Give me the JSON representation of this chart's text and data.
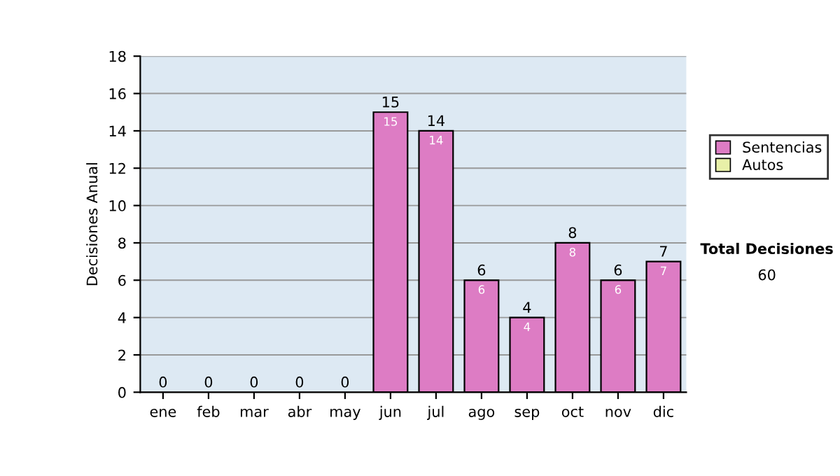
{
  "chart_data": {
    "type": "bar",
    "ylabel": "Decisiones Anual",
    "categories": [
      "ene",
      "feb",
      "mar",
      "abr",
      "may",
      "jun",
      "jul",
      "ago",
      "sep",
      "oct",
      "nov",
      "dic"
    ],
    "series": [
      {
        "name": "Sentencias",
        "color": "#dd7cc4",
        "values": [
          0,
          0,
          0,
          0,
          0,
          15,
          14,
          6,
          4,
          8,
          6,
          7
        ],
        "value_labels": [
          null,
          null,
          null,
          null,
          null,
          "15",
          "14",
          "6",
          "4",
          "8",
          "6",
          "7"
        ]
      },
      {
        "name": "Autos",
        "color": "#e8f0a8",
        "values": [
          0,
          0,
          0,
          0,
          0,
          0,
          0,
          0,
          0,
          0,
          0,
          0
        ]
      }
    ],
    "stacked": true,
    "totals": [
      "0",
      "0",
      "0",
      "0",
      "0",
      "15",
      "14",
      "6",
      "4",
      "8",
      "6",
      "7"
    ],
    "ylim": [
      0,
      18
    ],
    "yticks": [
      0,
      2,
      4,
      6,
      8,
      10,
      12,
      14,
      16,
      18
    ],
    "grid": "y",
    "legend": "right",
    "annotations": [
      "Total Decisiones",
      "60"
    ]
  }
}
